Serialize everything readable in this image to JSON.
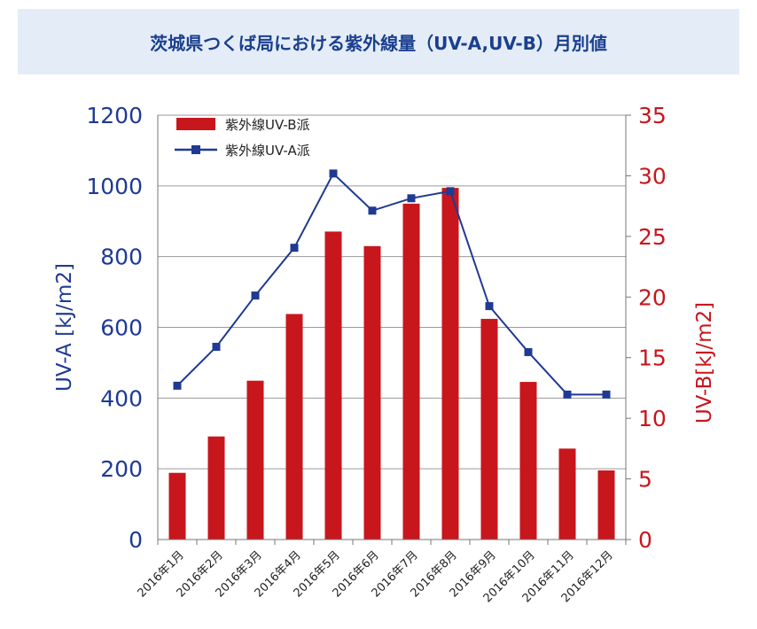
{
  "title": "茨城県つくば局における紫外線量（UV-A,UV-B）月別値",
  "chart_data": {
    "type": "bar+line",
    "title": "茨城県つくば局における紫外線量（UV-A,UV-B）月別値",
    "categories": [
      "2016年1月",
      "2016年2月",
      "2016年3月",
      "2016年4月",
      "2016年5月",
      "2016年6月",
      "2016年7月",
      "2016年8月",
      "2016年9月",
      "2016年10月",
      "2016年11月",
      "2016年12月"
    ],
    "series": [
      {
        "name": "紫外線UV-B派",
        "type": "bar",
        "axis": "right",
        "color": "#c8161d",
        "values": [
          5.5,
          8.5,
          13.1,
          18.6,
          25.4,
          24.2,
          27.7,
          29.0,
          18.2,
          13.0,
          7.5,
          5.7
        ]
      },
      {
        "name": "紫外線UV-A派",
        "type": "line",
        "axis": "left",
        "color": "#1f3a93",
        "values": [
          435,
          545,
          690,
          825,
          1035,
          930,
          965,
          985,
          660,
          530,
          410,
          410
        ]
      }
    ],
    "y_left": {
      "label": "UV-A [kJ/m2]",
      "min": 0,
      "max": 1200,
      "ticks": [
        "0",
        "200",
        "400",
        "600",
        "800",
        "1000",
        "1200"
      ],
      "color": "#1f3a93"
    },
    "y_right": {
      "label": "UV-B[kJ/m2]",
      "min": 0,
      "max": 35,
      "ticks": [
        "0",
        "5",
        "10",
        "15",
        "20",
        "25",
        "30",
        "35"
      ],
      "color": "#c8161d"
    },
    "legend_position": "top-left",
    "grid": true
  }
}
